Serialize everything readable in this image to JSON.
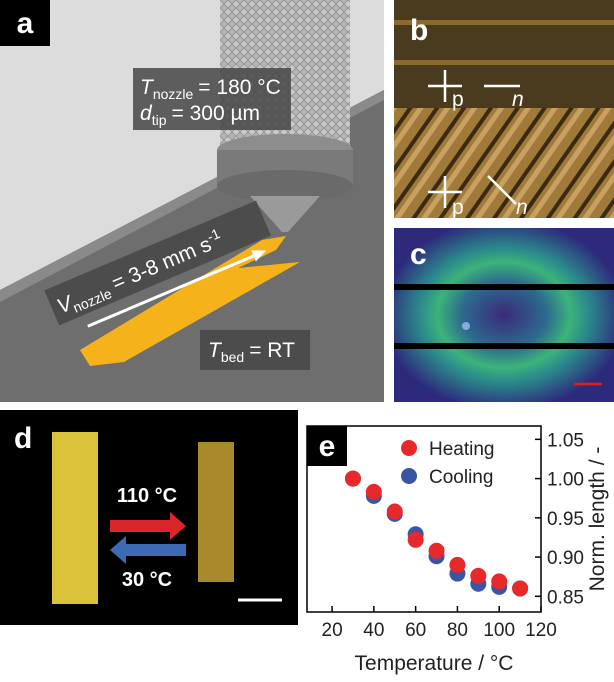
{
  "panel_a": {
    "label": "a",
    "t_nozzle": {
      "symbol": "T",
      "sub": "nozzle",
      "text": "= 180 °C"
    },
    "d_tip": {
      "symbol": "d",
      "sub": "tip",
      "text": "= 300 µm"
    },
    "v_nozzle": {
      "symbol": "V",
      "sub": "nozzle",
      "text": "= 3-8 mm s",
      "sup": "-1"
    },
    "t_bed": {
      "symbol": "T",
      "sub": "bed",
      "text": "= RT"
    }
  },
  "panel_b": {
    "label": "b",
    "top": {
      "polarizer": "p",
      "director": "n"
    },
    "bottom": {
      "polarizer": "p",
      "director": "n"
    }
  },
  "panel_c": {
    "label": "c"
  },
  "panel_d": {
    "label": "d",
    "heating_temp": "110 °C",
    "cooling_temp": "30 °C"
  },
  "chart_data": {
    "type": "scatter",
    "panel_label": "e",
    "x_label": "Temperature / °C",
    "y_label": "Norm. length / -",
    "x": [
      30,
      40,
      50,
      60,
      70,
      80,
      90,
      100,
      110
    ],
    "series": [
      {
        "name": "Heating",
        "color": "#e8292b",
        "values": [
          1.0,
          0.983,
          0.958,
          0.922,
          0.908,
          0.89,
          0.876,
          0.869,
          0.86
        ]
      },
      {
        "name": "Cooling",
        "color": "#3a55a4",
        "values": [
          1.0,
          0.978,
          0.955,
          0.929,
          0.901,
          0.879,
          0.866,
          0.862,
          0.86
        ]
      }
    ],
    "xlim": [
      8,
      120
    ],
    "xticks": [
      20,
      40,
      60,
      80,
      100,
      120
    ],
    "ylim": [
      0.83,
      1.067
    ],
    "yticks": [
      0.85,
      {
        "value": 0.9,
        "label": "0.90"
      },
      0.95,
      {
        "value": 1,
        "label": "1.00"
      },
      1.05
    ],
    "y_axis_side": "right",
    "legend": "upper right"
  }
}
